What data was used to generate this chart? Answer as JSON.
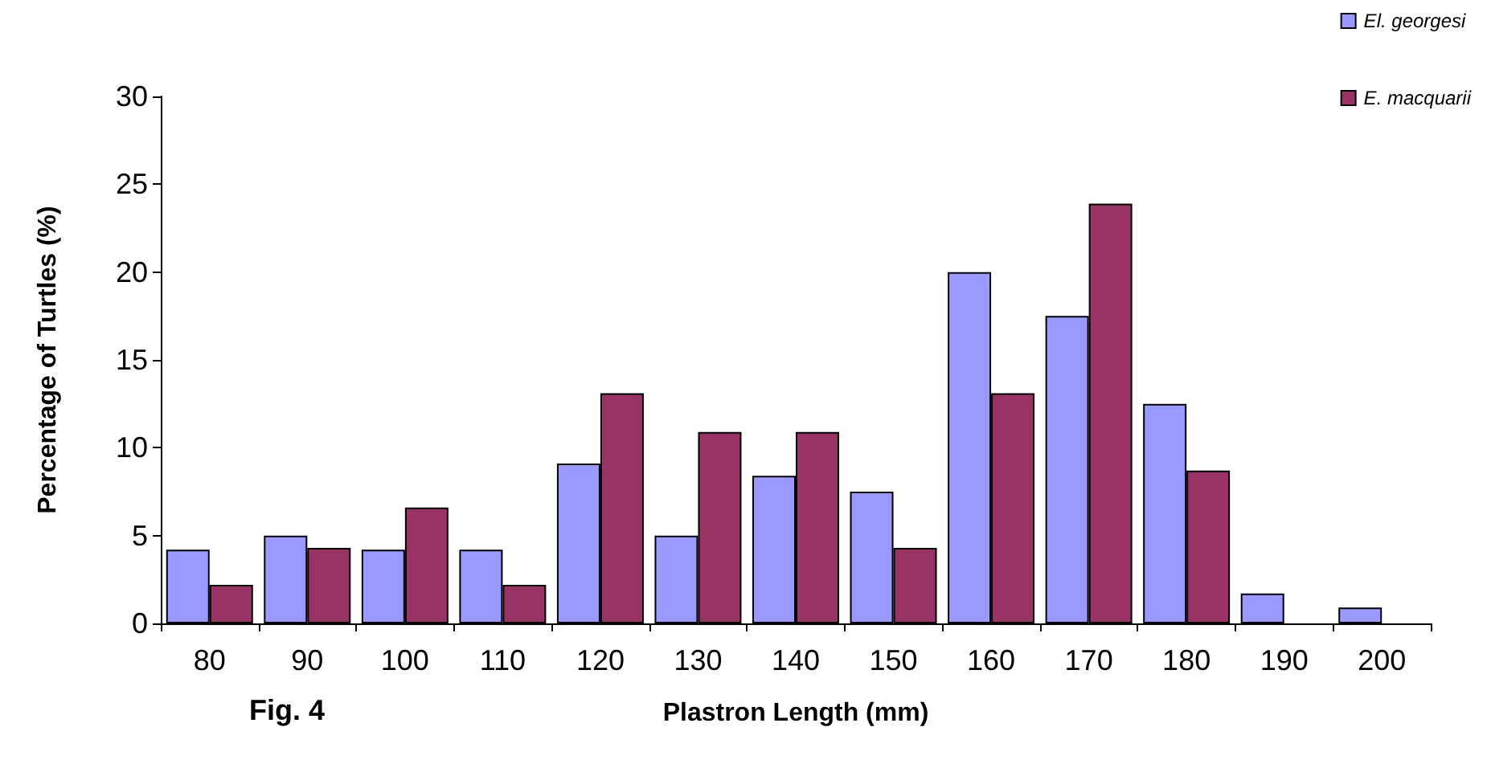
{
  "chart_data": {
    "type": "bar",
    "xlabel": "Plastron Length (mm)",
    "ylabel": "Percentage of Turtles (%)",
    "categories": [
      "80",
      "90",
      "100",
      "110",
      "120",
      "130",
      "140",
      "150",
      "160",
      "170",
      "180",
      "190",
      "200"
    ],
    "series": [
      {
        "name": "El. georgesi",
        "color": "#9999ff",
        "values": [
          4.2,
          5.0,
          4.2,
          4.2,
          9.1,
          5.0,
          8.4,
          7.5,
          20.0,
          17.5,
          12.5,
          1.7,
          0.9
        ]
      },
      {
        "name": "E. macquarii",
        "color": "#993366",
        "values": [
          2.2,
          4.3,
          6.6,
          2.2,
          13.1,
          10.9,
          10.9,
          4.3,
          13.1,
          23.9,
          8.7,
          null,
          null
        ]
      }
    ],
    "ylim": [
      0,
      30
    ],
    "yticks": [
      0,
      5,
      10,
      15,
      20,
      25,
      30
    ],
    "grid": false,
    "legend": "top right",
    "annotations": [
      "Fig. 4"
    ]
  }
}
